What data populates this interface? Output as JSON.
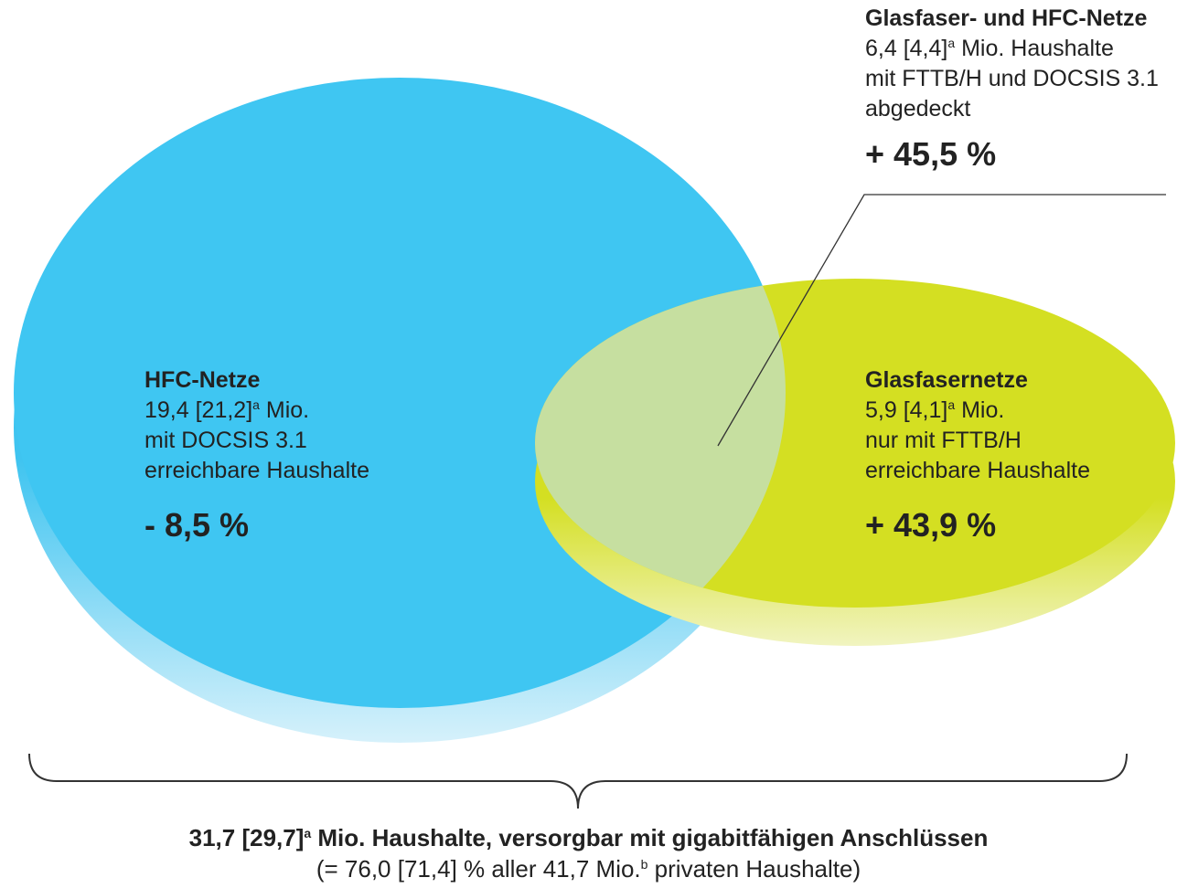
{
  "hfc": {
    "title": "HFC-Netze",
    "line1": "19,4 [21,2]",
    "line1_sup": "a",
    "line1_end": " Mio.",
    "line2": "mit DOCSIS 3.1",
    "line3": "erreichbare Haushalte",
    "change": "- 8,5 %"
  },
  "fiber": {
    "title": "Glasfasernetze",
    "line1": "5,9 [4,1]",
    "line1_sup": "a",
    "line1_end": " Mio.",
    "line2": "nur mit FTTB/H",
    "line3": "erreichbare Haushalte",
    "change": "+ 43,9 %"
  },
  "overlap": {
    "title": "Glasfaser- und HFC-Netze",
    "line1": "6,4 [4,4]",
    "line1_sup": "a",
    "line1_end": " Mio. Haushalte",
    "line2": "mit FTTB/H und DOCSIS 3.1",
    "line3": "abgedeckt",
    "change": "+ 45,5 %"
  },
  "footer": {
    "line1": "31,7 [29,7]",
    "line1_sup": "a",
    "line1_end": " Mio. Haushalte, versorgbar mit gigabitfähigen Anschlüssen",
    "line2": "(= 76,0 [71,4] % aller 41,7 Mio.",
    "line2_sup": "b",
    "line2_end": " privaten Haushalte)"
  }
}
